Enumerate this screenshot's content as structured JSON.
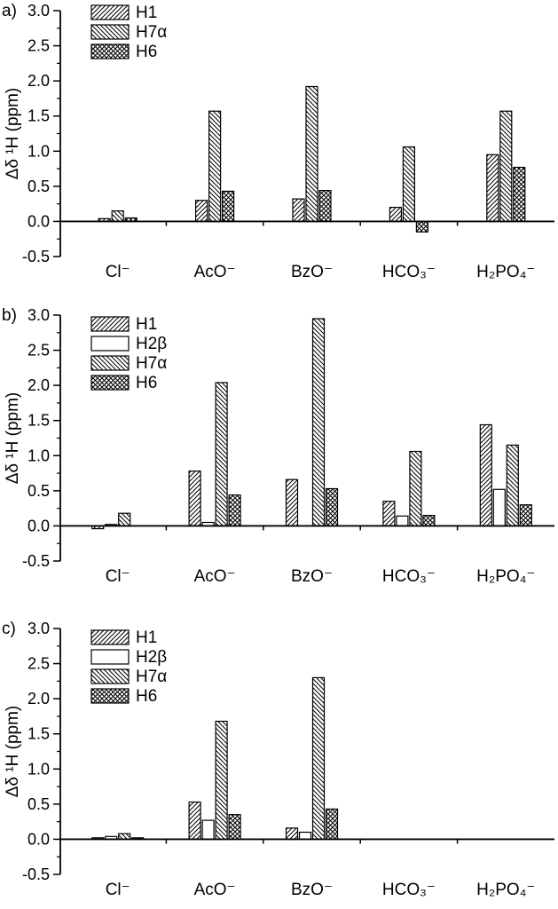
{
  "figure": {
    "background": "#ffffff",
    "ink_color": "#000000"
  },
  "chart_data": [
    {
      "type": "bar",
      "panel_label": "a)",
      "title": "",
      "xlabel": "",
      "ylabel": "Δδ ¹H (ppm)",
      "ylim": [
        -0.5,
        3.0
      ],
      "ytick_step": 0.5,
      "yminor_step": 0.25,
      "grid": false,
      "legend_position": "top-left",
      "categories": [
        "Cl⁻",
        "AcO⁻",
        "BzO⁻",
        "HCO₃⁻",
        "H₂PO₄⁻"
      ],
      "series": [
        {
          "name": "H1",
          "hatch": "diag-up",
          "values": [
            0.04,
            0.3,
            0.32,
            0.2,
            0.95
          ]
        },
        {
          "name": "H7α",
          "hatch": "diag-down",
          "values": [
            0.15,
            1.57,
            1.92,
            1.06,
            1.57
          ]
        },
        {
          "name": "H6",
          "hatch": "cross",
          "values": [
            0.05,
            0.43,
            0.44,
            -0.15,
            0.77
          ]
        }
      ]
    },
    {
      "type": "bar",
      "panel_label": "b)",
      "title": "",
      "xlabel": "",
      "ylabel": "Δδ ¹H (ppm)",
      "ylim": [
        -0.5,
        3.0
      ],
      "ytick_step": 0.5,
      "yminor_step": 0.25,
      "grid": false,
      "legend_position": "top-left",
      "categories": [
        "Cl⁻",
        "AcO⁻",
        "BzO⁻",
        "HCO₃⁻",
        "H₂PO₄⁻"
      ],
      "series": [
        {
          "name": "H1",
          "hatch": "diag-up",
          "values": [
            -0.04,
            0.78,
            0.66,
            0.35,
            1.44
          ]
        },
        {
          "name": "H2β",
          "hatch": "plain",
          "values": [
            0.02,
            0.05,
            0.0,
            0.14,
            0.52
          ]
        },
        {
          "name": "H7α",
          "hatch": "diag-down",
          "values": [
            0.18,
            2.04,
            2.95,
            1.06,
            1.15
          ]
        },
        {
          "name": "H6",
          "hatch": "cross",
          "values": [
            0.0,
            0.44,
            0.53,
            0.15,
            0.3
          ]
        }
      ]
    },
    {
      "type": "bar",
      "panel_label": "c)",
      "title": "",
      "xlabel": "",
      "ylabel": "Δδ ¹H (ppm)",
      "ylim": [
        -0.5,
        3.0
      ],
      "ytick_step": 0.5,
      "yminor_step": 0.25,
      "grid": false,
      "legend_position": "top-left",
      "categories": [
        "Cl⁻",
        "AcO⁻",
        "BzO⁻",
        "HCO₃⁻",
        "H₂PO₄⁻"
      ],
      "series": [
        {
          "name": "H1",
          "hatch": "diag-up",
          "values": [
            0.02,
            0.53,
            0.16,
            0.0,
            0.0
          ]
        },
        {
          "name": "H2β",
          "hatch": "plain",
          "values": [
            0.04,
            0.27,
            0.1,
            0.0,
            0.0
          ]
        },
        {
          "name": "H7α",
          "hatch": "diag-down",
          "values": [
            0.08,
            1.68,
            2.3,
            0.0,
            0.0
          ]
        },
        {
          "name": "H6",
          "hatch": "cross",
          "values": [
            0.02,
            0.35,
            0.43,
            0.0,
            0.0
          ]
        }
      ]
    }
  ]
}
